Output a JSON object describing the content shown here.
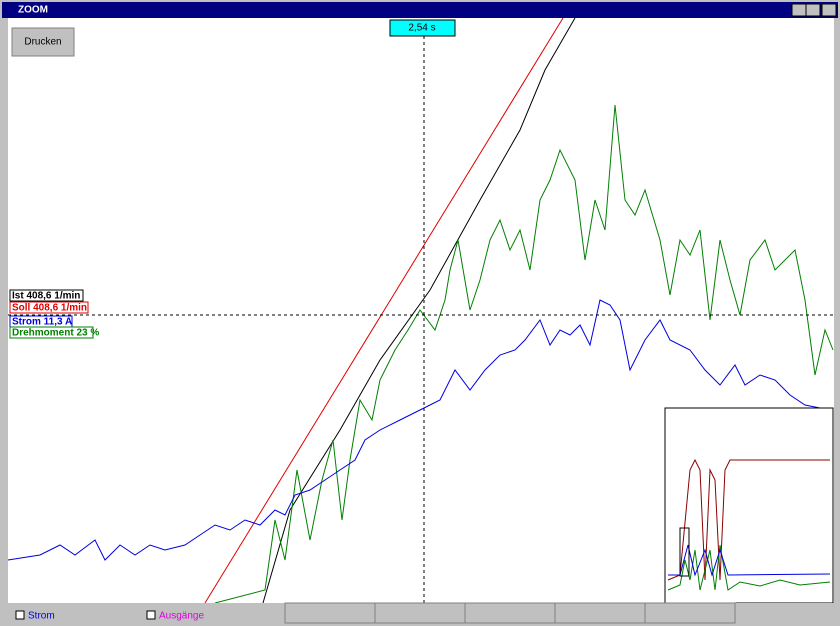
{
  "window": {
    "title": "ZOOM"
  },
  "toolbar": {
    "print_button": "Drucken"
  },
  "cursor": {
    "time_label": "2,54 s"
  },
  "legend": {
    "items": [
      "Ist 408,6 1/min",
      "Soll 408,6 1/min",
      "Strom 11,3 A",
      "Drehmoment 23 %"
    ]
  },
  "bottom": {
    "checkboxes": [
      "Strom",
      "Ausgänge"
    ]
  }
}
